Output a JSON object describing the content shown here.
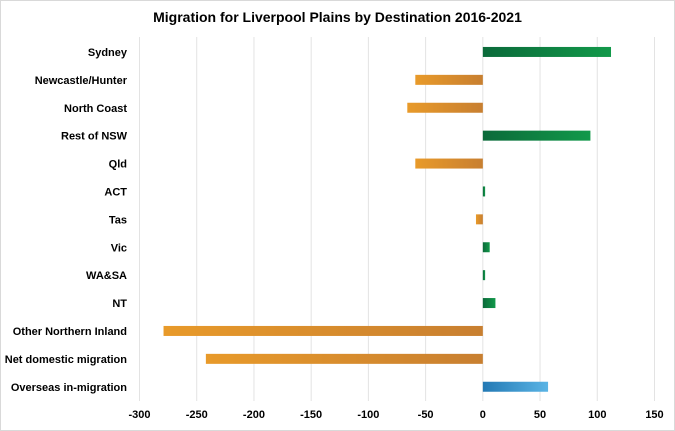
{
  "chart_data": {
    "type": "bar",
    "orientation": "horizontal",
    "title": "Migration for Liverpool Plains by Destination 2016-2021",
    "xlabel": "",
    "ylabel": "",
    "xlim": [
      -300,
      150
    ],
    "xticks": [
      -300,
      -250,
      -200,
      -150,
      -100,
      -50,
      0,
      50,
      100,
      150
    ],
    "xtick_labels": [
      "-300",
      "-250",
      "-200",
      "-150",
      "-100",
      "-50",
      "0",
      "50",
      "100",
      "150"
    ],
    "grid": "vertical",
    "legend": "none",
    "categories": [
      "Sydney",
      "Newcastle/Hunter",
      "North Coast",
      "Rest of NSW",
      "Qld",
      "ACT",
      "Tas",
      "Vic",
      "WA&SA",
      "NT",
      "Other Northern Inland",
      "Net domestic migration",
      "Overseas in-migration"
    ],
    "values": [
      112,
      -59,
      -66,
      94,
      -59,
      2,
      -6,
      6,
      2,
      11,
      -279,
      -242,
      57
    ],
    "colors": {
      "positive": [
        "#0b6a3a",
        "#12994a"
      ],
      "negative": [
        "#e89a2a",
        "#c87f30"
      ],
      "overseas": [
        "#2379b4",
        "#5ab4e5"
      ],
      "gridline": "#e3e3e3"
    }
  }
}
